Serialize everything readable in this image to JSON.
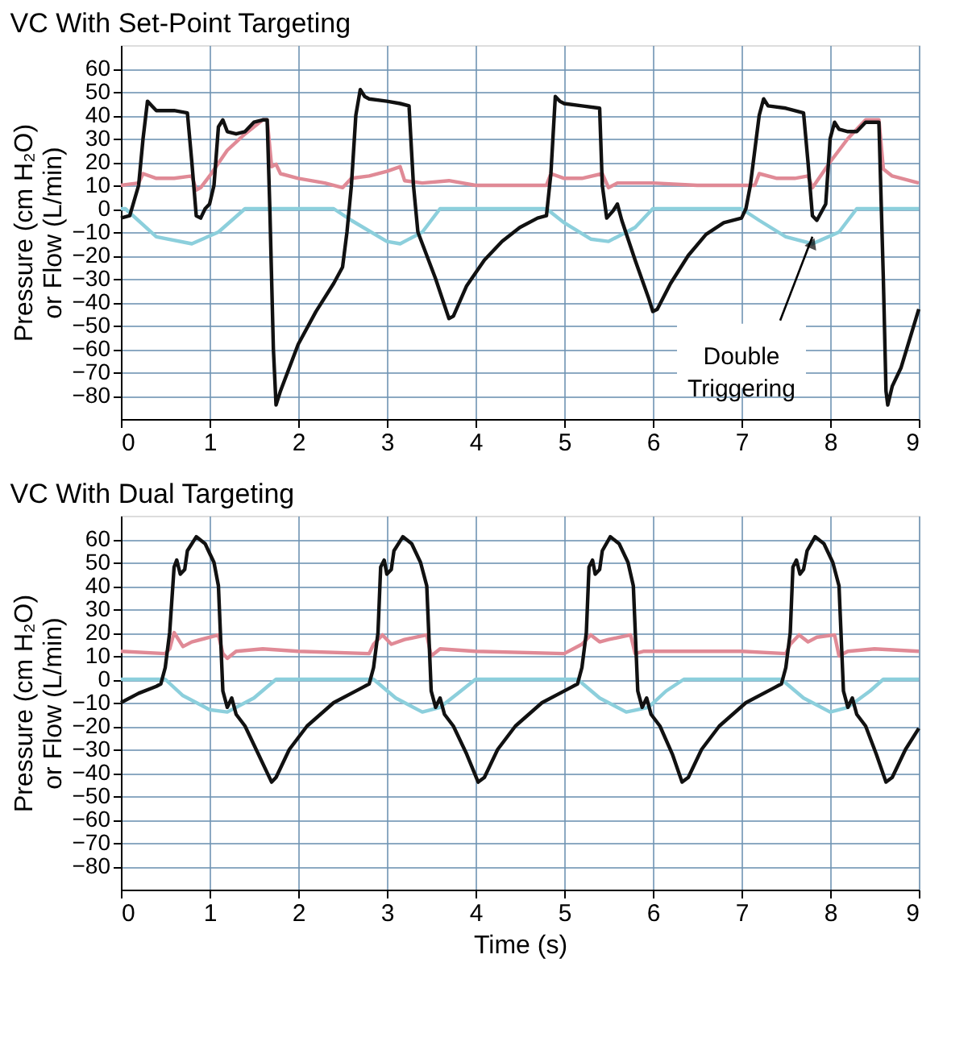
{
  "chart_data": [
    {
      "type": "line",
      "title": "VC With Set-Point Targeting",
      "ylabel": "Pressure (cm H₂O) or Flow (L/min)",
      "xlim": [
        0,
        9
      ],
      "xticks": [
        0,
        1,
        2,
        3,
        4,
        5,
        6,
        7,
        8,
        9
      ],
      "ylim": [
        -90,
        70
      ],
      "yticks": [
        -80,
        -70,
        -60,
        -50,
        -40,
        -30,
        -20,
        -10,
        0,
        10,
        20,
        30,
        40,
        50,
        60
      ],
      "grid": true,
      "annotations": [
        {
          "text": "Double Triggering",
          "x": 7.8,
          "y": -12
        }
      ],
      "series": [
        {
          "color": "#e08a96",
          "x": [
            0,
            0.2,
            0.25,
            0.4,
            0.6,
            0.8,
            0.85,
            0.9,
            1.0,
            1.2,
            1.4,
            1.6,
            1.65,
            1.7,
            1.75,
            1.8,
            2.0,
            2.3,
            2.5,
            2.6,
            2.8,
            3.0,
            3.15,
            3.2,
            3.4,
            3.7,
            4.0,
            4.8,
            4.85,
            5.0,
            5.2,
            5.43,
            5.5,
            5.6,
            6.0,
            6.5,
            7.0,
            7.15,
            7.2,
            7.4,
            7.6,
            7.75,
            7.8,
            8.0,
            8.2,
            8.4,
            8.55,
            8.6,
            8.7,
            9.0
          ],
          "values": [
            10,
            11,
            15,
            13,
            13,
            14,
            8,
            9,
            14,
            25,
            32,
            38,
            38,
            18,
            19,
            15,
            13,
            11,
            9,
            13,
            14,
            16,
            18,
            12,
            11,
            12,
            10,
            10,
            15,
            13,
            13,
            15,
            9,
            11,
            11,
            10,
            10,
            10,
            15,
            13,
            13,
            14,
            9,
            20,
            30,
            38,
            38,
            17,
            14,
            11
          ]
        },
        {
          "color": "#8ccfdc",
          "x": [
            0,
            0.05,
            0.4,
            0.8,
            1.1,
            1.4,
            2.4,
            2.6,
            3.0,
            3.15,
            3.4,
            3.6,
            4.8,
            5.0,
            5.3,
            5.5,
            5.8,
            6.0,
            7.0,
            7.2,
            7.5,
            7.8,
            8.1,
            8.3,
            9
          ],
          "values": [
            0,
            0,
            -12,
            -15,
            -10,
            0,
            0,
            -5,
            -14,
            -15,
            -10,
            0,
            0,
            -6,
            -13,
            -14,
            -8,
            0,
            0,
            -5,
            -12,
            -15,
            -10,
            0,
            0
          ]
        },
        {
          "color": "#111111",
          "x": [
            0,
            0.1,
            0.2,
            0.25,
            0.3,
            0.35,
            0.4,
            0.6,
            0.75,
            0.8,
            0.85,
            0.9,
            0.95,
            1.0,
            1.05,
            1.1,
            1.15,
            1.2,
            1.3,
            1.4,
            1.5,
            1.6,
            1.65,
            1.68,
            1.72,
            1.75,
            1.8,
            2.0,
            2.2,
            2.4,
            2.5,
            2.55,
            2.6,
            2.65,
            2.7,
            2.75,
            2.8,
            3.0,
            3.15,
            3.25,
            3.3,
            3.35,
            3.4,
            3.55,
            3.7,
            3.75,
            3.9,
            4.1,
            4.3,
            4.5,
            4.7,
            4.8,
            4.85,
            4.9,
            4.95,
            5.0,
            5.2,
            5.4,
            5.43,
            5.48,
            5.55,
            5.6,
            5.65,
            5.8,
            5.95,
            6.0,
            6.05,
            6.2,
            6.4,
            6.6,
            6.8,
            7.0,
            7.05,
            7.1,
            7.2,
            7.25,
            7.3,
            7.5,
            7.7,
            7.75,
            7.8,
            7.85,
            7.95,
            8.0,
            8.05,
            8.1,
            8.2,
            8.3,
            8.4,
            8.5,
            8.55,
            8.6,
            8.63,
            8.65,
            8.7,
            8.8,
            9.0
          ],
          "values": [
            -4,
            -3,
            10,
            30,
            46,
            44,
            42,
            42,
            41,
            20,
            -3,
            -4,
            0,
            2,
            10,
            35,
            38,
            33,
            32,
            33,
            37,
            38,
            38,
            0,
            -60,
            -84,
            -78,
            -58,
            -44,
            -32,
            -25,
            -10,
            10,
            40,
            51,
            48,
            47,
            46,
            45,
            44,
            10,
            -10,
            -15,
            -30,
            -47,
            -46,
            -33,
            -22,
            -14,
            -8,
            -4,
            -3,
            15,
            48,
            46,
            45,
            44,
            43,
            10,
            -4,
            -1,
            2,
            -5,
            -22,
            -38,
            -44,
            -43,
            -32,
            -20,
            -11,
            -6,
            -4,
            0,
            10,
            40,
            47,
            44,
            43,
            41,
            20,
            -3,
            -5,
            2,
            30,
            37,
            34,
            33,
            33,
            37,
            37,
            37,
            -30,
            -78,
            -84,
            -76,
            -68,
            -43
          ]
        }
      ]
    },
    {
      "type": "line",
      "title": "VC With Dual Targeting",
      "ylabel": "Pressure (cm H₂O) or Flow (L/min)",
      "xlabel": "Time (s)",
      "xlim": [
        0,
        9
      ],
      "xticks": [
        0,
        1,
        2,
        3,
        4,
        5,
        6,
        7,
        8,
        9
      ],
      "ylim": [
        -90,
        70
      ],
      "yticks": [
        -80,
        -70,
        -60,
        -50,
        -40,
        -30,
        -20,
        -10,
        0,
        10,
        20,
        30,
        40,
        50,
        60
      ],
      "grid": true,
      "series": [
        {
          "color": "#e08a96",
          "x": [
            0,
            0.5,
            0.55,
            0.6,
            0.7,
            0.8,
            1.0,
            1.1,
            1.15,
            1.2,
            1.3,
            1.6,
            2.0,
            2.8,
            2.85,
            2.95,
            3.05,
            3.2,
            3.45,
            3.5,
            3.6,
            4.0,
            5.0,
            5.2,
            5.3,
            5.4,
            5.5,
            5.75,
            5.8,
            5.9,
            6.5,
            7.0,
            7.5,
            7.55,
            7.65,
            7.75,
            7.85,
            8.05,
            8.1,
            8.2,
            8.5,
            9
          ],
          "values": [
            12,
            11,
            13,
            20,
            14,
            16,
            18,
            19,
            11,
            9,
            12,
            13,
            12,
            11,
            15,
            19,
            15,
            17,
            19,
            10,
            13,
            12,
            11,
            15,
            19,
            16,
            17,
            19,
            11,
            12,
            12,
            12,
            11,
            15,
            19,
            16,
            18,
            19,
            10,
            12,
            13,
            12
          ]
        },
        {
          "color": "#8ccfdc",
          "x": [
            0,
            0.5,
            0.7,
            1.0,
            1.2,
            1.5,
            1.75,
            2.85,
            3.1,
            3.4,
            3.6,
            3.8,
            4.0,
            5.15,
            5.4,
            5.7,
            5.95,
            6.15,
            6.35,
            7.45,
            7.7,
            8.0,
            8.2,
            8.45,
            8.6,
            9
          ],
          "values": [
            0,
            0,
            -7,
            -13,
            -14,
            -8,
            0,
            0,
            -8,
            -14,
            -12,
            -6,
            0,
            0,
            -8,
            -14,
            -12,
            -5,
            0,
            0,
            -8,
            -14,
            -12,
            -5,
            0,
            0
          ]
        },
        {
          "color": "#111111",
          "x": [
            0,
            0.2,
            0.4,
            0.45,
            0.5,
            0.55,
            0.6,
            0.63,
            0.67,
            0.72,
            0.75,
            0.85,
            0.95,
            1.05,
            1.1,
            1.15,
            1.2,
            1.25,
            1.3,
            1.4,
            1.55,
            1.7,
            1.75,
            1.9,
            2.1,
            2.4,
            2.7,
            2.8,
            2.85,
            2.9,
            2.93,
            2.97,
            3.0,
            3.05,
            3.08,
            3.18,
            3.28,
            3.38,
            3.45,
            3.5,
            3.55,
            3.6,
            3.65,
            3.75,
            3.9,
            4.03,
            4.1,
            4.25,
            4.45,
            4.75,
            5.05,
            5.15,
            5.2,
            5.25,
            5.28,
            5.32,
            5.35,
            5.4,
            5.43,
            5.52,
            5.62,
            5.72,
            5.78,
            5.83,
            5.88,
            5.93,
            5.98,
            6.08,
            6.22,
            6.33,
            6.4,
            6.55,
            6.75,
            7.05,
            7.35,
            7.45,
            7.5,
            7.55,
            7.58,
            7.62,
            7.66,
            7.7,
            7.74,
            7.83,
            7.93,
            8.03,
            8.1,
            8.15,
            8.2,
            8.25,
            8.3,
            8.4,
            8.52,
            8.63,
            8.7,
            8.85,
            9.0
          ],
          "values": [
            -10,
            -6,
            -3,
            -2,
            5,
            20,
            48,
            51,
            45,
            47,
            55,
            61,
            58,
            50,
            40,
            -5,
            -12,
            -8,
            -15,
            -20,
            -32,
            -44,
            -42,
            -30,
            -20,
            -10,
            -4,
            -2,
            5,
            20,
            48,
            51,
            45,
            47,
            55,
            61,
            58,
            50,
            40,
            -5,
            -12,
            -8,
            -15,
            -20,
            -32,
            -44,
            -42,
            -30,
            -20,
            -10,
            -4,
            -2,
            5,
            20,
            48,
            51,
            45,
            47,
            55,
            61,
            58,
            50,
            40,
            -5,
            -12,
            -8,
            -15,
            -20,
            -32,
            -44,
            -42,
            -30,
            -20,
            -10,
            -4,
            -2,
            5,
            20,
            48,
            51,
            45,
            47,
            55,
            61,
            58,
            50,
            40,
            -5,
            -12,
            -8,
            -15,
            -20,
            -32,
            -44,
            -42,
            -30,
            -21
          ]
        }
      ]
    }
  ]
}
